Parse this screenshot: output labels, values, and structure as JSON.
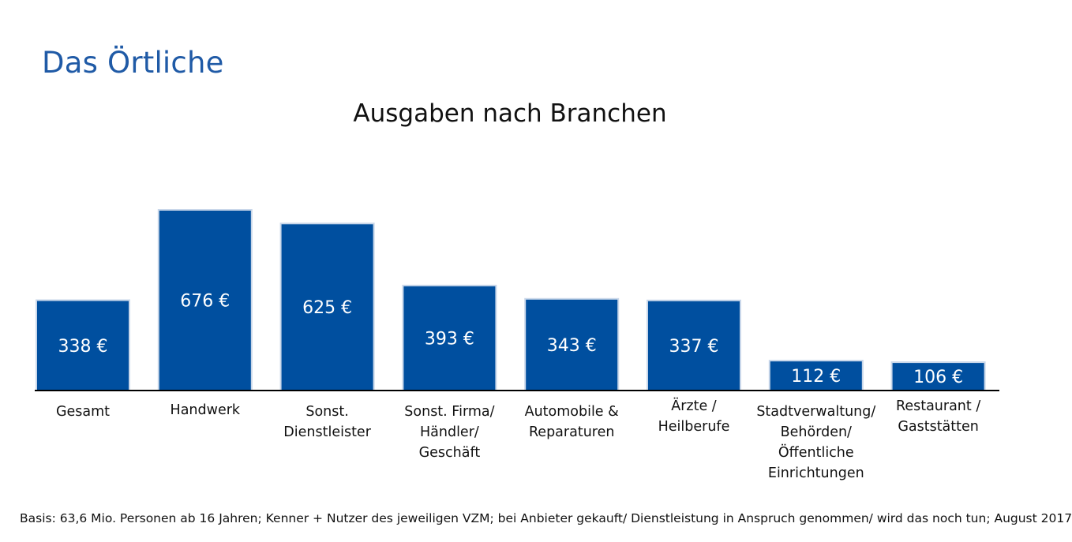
{
  "brand": {
    "name": "Das Örtliche",
    "color": "#1f5aa6"
  },
  "colors": {
    "bar": "#004f9f",
    "bar_border": "#c9d7ea",
    "value_label": "#ffffff",
    "axis": "#000000",
    "text": "#111111"
  },
  "chart_data": {
    "type": "bar",
    "title": "Ausgaben nach Branchen",
    "xlabel": "",
    "ylabel": "",
    "unit": "€",
    "ylim": [
      0,
      700
    ],
    "grid": false,
    "categories": [
      [
        "Gesamt"
      ],
      [
        "Handwerk"
      ],
      [
        "Sonst.",
        "Dienstleister"
      ],
      [
        "Sonst. Firma/",
        "Händler/",
        "Geschäft"
      ],
      [
        "Automobile &",
        "Reparaturen"
      ],
      [
        "Ärzte /",
        "Heilberufe"
      ],
      [
        "Stadtverwaltung/",
        "Behörden/",
        "Öffentliche",
        "Einrichtungen"
      ],
      [
        "Restaurant /",
        "Gaststätten"
      ]
    ],
    "values": [
      338,
      676,
      625,
      393,
      343,
      337,
      112,
      106
    ],
    "value_labels": [
      "338 €",
      "676 €",
      "625 €",
      "393 €",
      "343 €",
      "337 €",
      "112 €",
      "106 €"
    ]
  },
  "footnote": "Basis: 63,6 Mio. Personen ab 16 Jahren; Kenner + Nutzer des jeweiligen VZM; bei Anbieter gekauft/ Dienstleistung in Anspruch genommen/ wird das noch tun; August 2017"
}
